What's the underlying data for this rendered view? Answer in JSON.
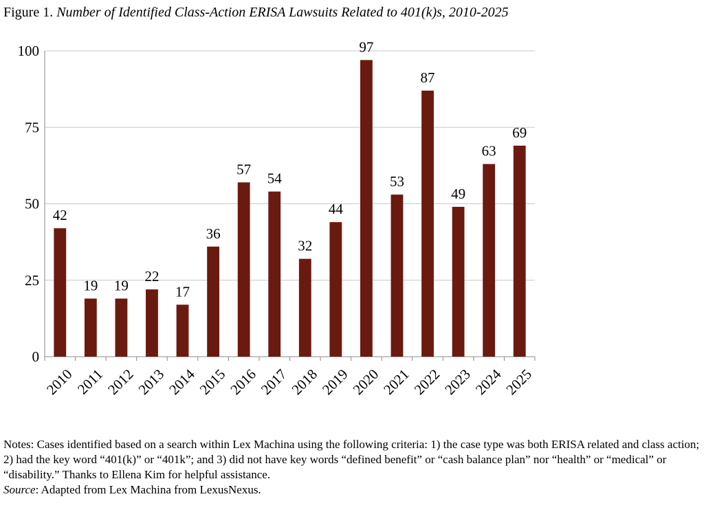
{
  "chart_data": {
    "type": "bar",
    "title_prefix": "Figure 1.",
    "title": "Number of Identified Class-Action ERISA Lawsuits Related to 401(k)s, 2010-2025",
    "categories": [
      "2010",
      "2011",
      "2012",
      "2013",
      "2014",
      "2015",
      "2016",
      "2017",
      "2018",
      "2019",
      "2020",
      "2021",
      "2022",
      "2023",
      "2024",
      "2025"
    ],
    "values": [
      42,
      19,
      19,
      22,
      17,
      36,
      57,
      54,
      32,
      44,
      97,
      53,
      87,
      49,
      63,
      69
    ],
    "color": "#6b1a10",
    "ylim": [
      0,
      100
    ],
    "yticks": [
      0,
      25,
      50,
      75,
      100
    ],
    "grid": true
  },
  "notes": "Notes: Cases identified based on a search within Lex Machina using the following criteria: 1) the case type was both ERISA related and class action; 2) had the key word “401(k)” or “401k”; and 3) did not have key words “defined benefit” or “cash balance plan” nor “health” or “medical” or “disability.” Thanks to Ellena Kim for helpful assistance.",
  "source_label": "Source",
  "source_text": ": Adapted from Lex Machina from LexusNexus."
}
